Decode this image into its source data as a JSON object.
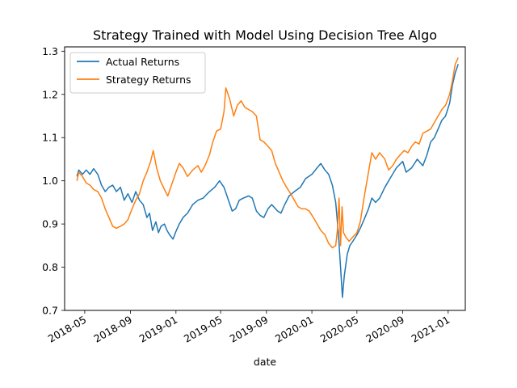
{
  "chart_data": {
    "type": "line",
    "title": "Strategy Trained with Model Using Decision Tree Algo",
    "xlabel": "date",
    "ylabel": "",
    "xlim": [
      "2018-03-08",
      "2021-02-16"
    ],
    "ylim": [
      0.7,
      1.31
    ],
    "x_ticks": [
      "2018-05",
      "2018-09",
      "2019-01",
      "2019-05",
      "2019-09",
      "2020-01",
      "2020-05",
      "2020-09",
      "2021-01"
    ],
    "y_ticks": [
      0.7,
      0.8,
      0.9,
      1.0,
      1.1,
      1.2,
      1.3
    ],
    "y_tick_labels": [
      "0.7",
      "0.8",
      "0.9",
      "1.0",
      "1.1",
      "1.2",
      "1.3"
    ],
    "grid": false,
    "legend_position": "top-left",
    "series": [
      {
        "name": "Actual Returns",
        "color": "#1f77b4",
        "points": [
          [
            "2018-04-10",
            1.01
          ],
          [
            "2018-04-15",
            1.025
          ],
          [
            "2018-04-25",
            1.015
          ],
          [
            "2018-05-05",
            1.025
          ],
          [
            "2018-05-15",
            1.015
          ],
          [
            "2018-05-25",
            1.028
          ],
          [
            "2018-06-05",
            1.015
          ],
          [
            "2018-06-15",
            0.99
          ],
          [
            "2018-06-25",
            0.975
          ],
          [
            "2018-07-05",
            0.985
          ],
          [
            "2018-07-15",
            0.99
          ],
          [
            "2018-07-25",
            0.975
          ],
          [
            "2018-08-05",
            0.985
          ],
          [
            "2018-08-15",
            0.955
          ],
          [
            "2018-08-25",
            0.97
          ],
          [
            "2018-09-05",
            0.95
          ],
          [
            "2018-09-15",
            0.975
          ],
          [
            "2018-09-25",
            0.955
          ],
          [
            "2018-10-05",
            0.945
          ],
          [
            "2018-10-15",
            0.915
          ],
          [
            "2018-10-22",
            0.925
          ],
          [
            "2018-10-30",
            0.885
          ],
          [
            "2018-11-08",
            0.905
          ],
          [
            "2018-11-15",
            0.88
          ],
          [
            "2018-11-22",
            0.895
          ],
          [
            "2018-12-01",
            0.9
          ],
          [
            "2018-12-08",
            0.885
          ],
          [
            "2018-12-15",
            0.875
          ],
          [
            "2018-12-24",
            0.865
          ],
          [
            "2019-01-02",
            0.885
          ],
          [
            "2019-01-10",
            0.9
          ],
          [
            "2019-01-20",
            0.915
          ],
          [
            "2019-02-01",
            0.925
          ],
          [
            "2019-02-15",
            0.945
          ],
          [
            "2019-03-01",
            0.955
          ],
          [
            "2019-03-15",
            0.96
          ],
          [
            "2019-04-01",
            0.975
          ],
          [
            "2019-04-15",
            0.985
          ],
          [
            "2019-04-28",
            1.0
          ],
          [
            "2019-05-10",
            0.985
          ],
          [
            "2019-05-20",
            0.96
          ],
          [
            "2019-06-01",
            0.93
          ],
          [
            "2019-06-10",
            0.935
          ],
          [
            "2019-06-20",
            0.955
          ],
          [
            "2019-07-01",
            0.96
          ],
          [
            "2019-07-15",
            0.965
          ],
          [
            "2019-07-25",
            0.96
          ],
          [
            "2019-08-05",
            0.93
          ],
          [
            "2019-08-15",
            0.92
          ],
          [
            "2019-08-25",
            0.915
          ],
          [
            "2019-09-05",
            0.935
          ],
          [
            "2019-09-15",
            0.945
          ],
          [
            "2019-10-01",
            0.93
          ],
          [
            "2019-10-10",
            0.925
          ],
          [
            "2019-10-20",
            0.945
          ],
          [
            "2019-11-01",
            0.965
          ],
          [
            "2019-11-15",
            0.975
          ],
          [
            "2019-12-01",
            0.985
          ],
          [
            "2019-12-15",
            1.005
          ],
          [
            "2020-01-01",
            1.015
          ],
          [
            "2020-01-15",
            1.03
          ],
          [
            "2020-01-25",
            1.04
          ],
          [
            "2020-02-05",
            1.025
          ],
          [
            "2020-02-15",
            1.015
          ],
          [
            "2020-02-25",
            0.99
          ],
          [
            "2020-03-05",
            0.95
          ],
          [
            "2020-03-12",
            0.88
          ],
          [
            "2020-03-18",
            0.8
          ],
          [
            "2020-03-23",
            0.73
          ],
          [
            "2020-03-28",
            0.78
          ],
          [
            "2020-04-05",
            0.83
          ],
          [
            "2020-04-12",
            0.85
          ],
          [
            "2020-04-20",
            0.86
          ],
          [
            "2020-05-01",
            0.875
          ],
          [
            "2020-05-10",
            0.89
          ],
          [
            "2020-05-20",
            0.91
          ],
          [
            "2020-06-01",
            0.935
          ],
          [
            "2020-06-10",
            0.96
          ],
          [
            "2020-06-20",
            0.95
          ],
          [
            "2020-07-01",
            0.96
          ],
          [
            "2020-07-15",
            0.985
          ],
          [
            "2020-08-01",
            1.01
          ],
          [
            "2020-08-15",
            1.03
          ],
          [
            "2020-09-01",
            1.045
          ],
          [
            "2020-09-10",
            1.02
          ],
          [
            "2020-09-25",
            1.03
          ],
          [
            "2020-10-10",
            1.05
          ],
          [
            "2020-10-25",
            1.035
          ],
          [
            "2020-11-05",
            1.06
          ],
          [
            "2020-11-15",
            1.09
          ],
          [
            "2020-11-25",
            1.1
          ],
          [
            "2020-12-05",
            1.12
          ],
          [
            "2020-12-15",
            1.14
          ],
          [
            "2020-12-25",
            1.15
          ],
          [
            "2021-01-05",
            1.18
          ],
          [
            "2021-01-12",
            1.22
          ],
          [
            "2021-01-20",
            1.25
          ],
          [
            "2021-01-28",
            1.27
          ]
        ]
      },
      {
        "name": "Strategy Returns",
        "color": "#ff7f0e",
        "points": [
          [
            "2018-04-10",
            1.0
          ],
          [
            "2018-04-15",
            1.02
          ],
          [
            "2018-04-25",
            1.01
          ],
          [
            "2018-05-05",
            0.995
          ],
          [
            "2018-05-15",
            0.99
          ],
          [
            "2018-05-25",
            0.98
          ],
          [
            "2018-06-05",
            0.975
          ],
          [
            "2018-06-15",
            0.96
          ],
          [
            "2018-06-25",
            0.935
          ],
          [
            "2018-07-05",
            0.915
          ],
          [
            "2018-07-15",
            0.895
          ],
          [
            "2018-07-25",
            0.89
          ],
          [
            "2018-08-05",
            0.895
          ],
          [
            "2018-08-15",
            0.9
          ],
          [
            "2018-08-25",
            0.91
          ],
          [
            "2018-09-05",
            0.935
          ],
          [
            "2018-09-15",
            0.955
          ],
          [
            "2018-09-25",
            0.97
          ],
          [
            "2018-10-05",
            1.0
          ],
          [
            "2018-10-15",
            1.02
          ],
          [
            "2018-10-25",
            1.045
          ],
          [
            "2018-11-01",
            1.07
          ],
          [
            "2018-11-10",
            1.03
          ],
          [
            "2018-11-20",
            1.0
          ],
          [
            "2018-12-01",
            0.98
          ],
          [
            "2018-12-10",
            0.965
          ],
          [
            "2018-12-20",
            0.99
          ],
          [
            "2019-01-01",
            1.02
          ],
          [
            "2019-01-10",
            1.04
          ],
          [
            "2019-01-20",
            1.03
          ],
          [
            "2019-02-01",
            1.01
          ],
          [
            "2019-02-15",
            1.025
          ],
          [
            "2019-03-01",
            1.035
          ],
          [
            "2019-03-10",
            1.02
          ],
          [
            "2019-03-20",
            1.035
          ],
          [
            "2019-04-01",
            1.06
          ],
          [
            "2019-04-10",
            1.09
          ],
          [
            "2019-04-20",
            1.115
          ],
          [
            "2019-05-01",
            1.12
          ],
          [
            "2019-05-10",
            1.16
          ],
          [
            "2019-05-15",
            1.215
          ],
          [
            "2019-05-25",
            1.19
          ],
          [
            "2019-06-05",
            1.15
          ],
          [
            "2019-06-15",
            1.175
          ],
          [
            "2019-06-25",
            1.185
          ],
          [
            "2019-07-05",
            1.17
          ],
          [
            "2019-07-15",
            1.165
          ],
          [
            "2019-07-25",
            1.16
          ],
          [
            "2019-08-05",
            1.15
          ],
          [
            "2019-08-15",
            1.095
          ],
          [
            "2019-08-25",
            1.09
          ],
          [
            "2019-09-05",
            1.08
          ],
          [
            "2019-09-15",
            1.07
          ],
          [
            "2019-09-25",
            1.04
          ],
          [
            "2019-10-05",
            1.02
          ],
          [
            "2019-10-15",
            1.0
          ],
          [
            "2019-10-25",
            0.985
          ],
          [
            "2019-11-05",
            0.97
          ],
          [
            "2019-11-15",
            0.955
          ],
          [
            "2019-11-25",
            0.94
          ],
          [
            "2019-12-05",
            0.935
          ],
          [
            "2019-12-15",
            0.935
          ],
          [
            "2019-12-25",
            0.93
          ],
          [
            "2020-01-05",
            0.915
          ],
          [
            "2020-01-15",
            0.9
          ],
          [
            "2020-01-25",
            0.885
          ],
          [
            "2020-02-05",
            0.875
          ],
          [
            "2020-02-15",
            0.855
          ],
          [
            "2020-02-25",
            0.845
          ],
          [
            "2020-03-05",
            0.85
          ],
          [
            "2020-03-10",
            0.89
          ],
          [
            "2020-03-14",
            0.96
          ],
          [
            "2020-03-18",
            0.85
          ],
          [
            "2020-03-22",
            0.94
          ],
          [
            "2020-03-26",
            0.88
          ],
          [
            "2020-04-01",
            0.87
          ],
          [
            "2020-04-10",
            0.86
          ],
          [
            "2020-04-20",
            0.87
          ],
          [
            "2020-05-01",
            0.88
          ],
          [
            "2020-05-10",
            0.905
          ],
          [
            "2020-05-20",
            0.96
          ],
          [
            "2020-06-01",
            1.02
          ],
          [
            "2020-06-10",
            1.065
          ],
          [
            "2020-06-20",
            1.05
          ],
          [
            "2020-07-01",
            1.065
          ],
          [
            "2020-07-15",
            1.05
          ],
          [
            "2020-07-25",
            1.025
          ],
          [
            "2020-08-05",
            1.035
          ],
          [
            "2020-08-15",
            1.05
          ],
          [
            "2020-08-25",
            1.06
          ],
          [
            "2020-09-05",
            1.07
          ],
          [
            "2020-09-15",
            1.065
          ],
          [
            "2020-09-25",
            1.08
          ],
          [
            "2020-10-05",
            1.09
          ],
          [
            "2020-10-15",
            1.085
          ],
          [
            "2020-10-25",
            1.11
          ],
          [
            "2020-11-05",
            1.115
          ],
          [
            "2020-11-15",
            1.12
          ],
          [
            "2020-11-25",
            1.135
          ],
          [
            "2020-12-05",
            1.15
          ],
          [
            "2020-12-15",
            1.165
          ],
          [
            "2020-12-25",
            1.175
          ],
          [
            "2021-01-05",
            1.2
          ],
          [
            "2021-01-12",
            1.23
          ],
          [
            "2021-01-20",
            1.27
          ],
          [
            "2021-01-28",
            1.285
          ]
        ]
      }
    ]
  }
}
